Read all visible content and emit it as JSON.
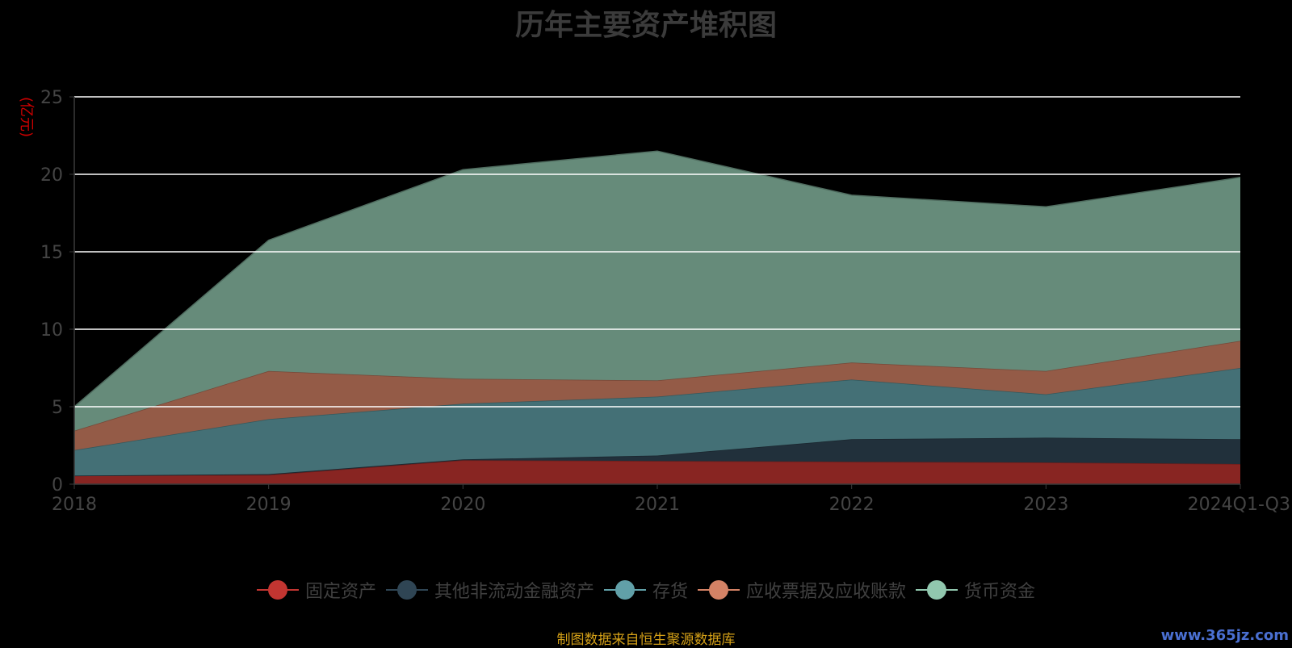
{
  "chart_data": {
    "type": "area",
    "stacked": true,
    "title": "历年主要资产堆积图",
    "ylabel": "(亿元)",
    "xlabel": "",
    "categories": [
      "2018",
      "2019",
      "2020",
      "2021",
      "2022",
      "2023",
      "2024Q1-Q3"
    ],
    "ylim": [
      0,
      25
    ],
    "yticks": [
      0,
      5,
      10,
      15,
      20,
      25
    ],
    "grid": true,
    "legend_position": "bottom",
    "series": [
      {
        "name": "固定资产",
        "color": "#c23531",
        "values": [
          0.55,
          0.6,
          1.55,
          1.5,
          1.45,
          1.4,
          1.3
        ]
      },
      {
        "name": "其他非流动金融资产",
        "color": "#2f4554",
        "values": [
          0.0,
          0.05,
          0.05,
          0.35,
          1.45,
          1.6,
          1.6
        ]
      },
      {
        "name": "存货",
        "color": "#61a0a8",
        "values": [
          1.65,
          3.55,
          3.6,
          3.8,
          3.85,
          2.8,
          4.6
        ]
      },
      {
        "name": "应收票据及应收账款",
        "color": "#d48265",
        "values": [
          1.25,
          3.1,
          1.6,
          1.05,
          1.1,
          1.5,
          1.75
        ]
      },
      {
        "name": "货币资金",
        "color": "#91c7ae",
        "values": [
          1.55,
          8.45,
          13.5,
          14.8,
          10.8,
          10.6,
          10.55
        ]
      }
    ]
  },
  "source_note": "制图数据来自恒生聚源数据库",
  "watermark": "www.365jz.com"
}
